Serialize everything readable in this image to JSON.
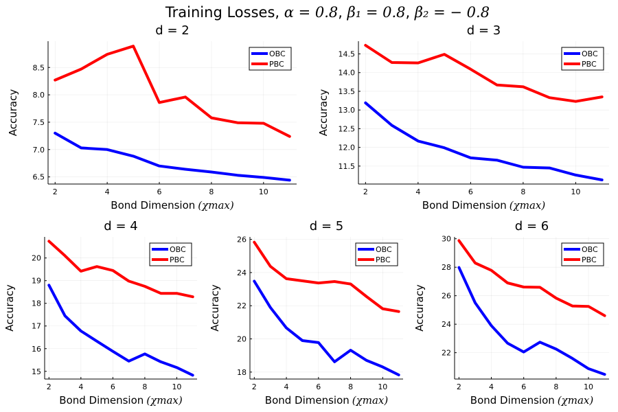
{
  "figure": {
    "title": {
      "prefix": "Training Losses, ",
      "alpha": "α = 0.8",
      "beta1": "β₁ = 0.8",
      "beta2": "β₂ = − 0.8",
      "sep": ", "
    }
  },
  "chart_data": [
    {
      "type": "line",
      "title": "d = 2",
      "xlabel": "Bond Dimension",
      "xlabel_math": "(χmax)",
      "ylabel": "Accuracy",
      "x": [
        2,
        3,
        4,
        5,
        6,
        7,
        8,
        9,
        10,
        11
      ],
      "xticks": [
        2,
        4,
        6,
        8,
        10
      ],
      "yticks": [
        6.5,
        7.0,
        7.5,
        8.0,
        8.5
      ],
      "ytick_labels": [
        "6.5",
        "7.0",
        "7.5",
        "8.0",
        "8.5"
      ],
      "xlim": [
        1.73,
        11.27
      ],
      "ylim": [
        6.37,
        8.98
      ],
      "grid": true,
      "legend": "top-right",
      "series": [
        {
          "name": "OBC",
          "color": "#0000ff",
          "values": [
            7.3,
            7.03,
            7.0,
            6.88,
            6.7,
            6.64,
            6.59,
            6.53,
            6.49,
            6.44
          ]
        },
        {
          "name": "PBC",
          "color": "#ff0000",
          "values": [
            8.27,
            8.47,
            8.74,
            8.89,
            7.86,
            7.96,
            7.58,
            7.49,
            7.48,
            7.24
          ]
        }
      ]
    },
    {
      "type": "line",
      "title": "d = 3",
      "xlabel": "Bond Dimension",
      "xlabel_math": "(χmax)",
      "ylabel": "Accuracy",
      "x": [
        2,
        3,
        4,
        5,
        6,
        7,
        8,
        9,
        10,
        11
      ],
      "xticks": [
        2,
        4,
        6,
        8,
        10
      ],
      "yticks": [
        11.5,
        12.0,
        12.5,
        13.0,
        13.5,
        14.0,
        14.5
      ],
      "ytick_labels": [
        "11.5",
        "12.0",
        "12.5",
        "13.0",
        "13.5",
        "14.0",
        "14.5"
      ],
      "xlim": [
        1.73,
        11.27
      ],
      "ylim": [
        11.02,
        14.84
      ],
      "grid": true,
      "legend": "top-right",
      "series": [
        {
          "name": "OBC",
          "color": "#0000ff",
          "values": [
            13.19,
            12.59,
            12.17,
            11.99,
            11.72,
            11.66,
            11.47,
            11.45,
            11.26,
            11.13
          ]
        },
        {
          "name": "PBC",
          "color": "#ff0000",
          "values": [
            14.73,
            14.27,
            14.26,
            14.49,
            14.09,
            13.67,
            13.62,
            13.33,
            13.23,
            13.35
          ]
        }
      ]
    },
    {
      "type": "line",
      "title": "d = 4",
      "xlabel": "Bond Dimension",
      "xlabel_math": "(χmax)",
      "ylabel": "Accuracy",
      "x": [
        2,
        3,
        4,
        5,
        6,
        7,
        8,
        9,
        10,
        11
      ],
      "xticks": [
        2,
        4,
        6,
        8,
        10
      ],
      "yticks": [
        15,
        16,
        17,
        18,
        19,
        20
      ],
      "ytick_labels": [
        "15",
        "16",
        "17",
        "18",
        "19",
        "20"
      ],
      "xlim": [
        1.73,
        11.27
      ],
      "ylim": [
        14.66,
        20.93
      ],
      "grid": true,
      "legend": "top-right",
      "series": [
        {
          "name": "OBC",
          "color": "#0000ff",
          "values": [
            18.8,
            17.45,
            16.78,
            16.33,
            15.88,
            15.45,
            15.77,
            15.42,
            15.17,
            14.83
          ]
        },
        {
          "name": "PBC",
          "color": "#ff0000",
          "values": [
            20.74,
            20.1,
            19.42,
            19.62,
            19.45,
            18.98,
            18.75,
            18.44,
            18.44,
            18.29
          ]
        }
      ]
    },
    {
      "type": "line",
      "title": "d = 5",
      "xlabel": "Bond Dimension",
      "xlabel_math": "(χmax)",
      "ylabel": "Accuracy",
      "x": [
        2,
        3,
        4,
        5,
        6,
        7,
        8,
        9,
        10,
        11
      ],
      "xticks": [
        2,
        4,
        6,
        8,
        10
      ],
      "yticks": [
        18,
        20,
        22,
        24,
        26
      ],
      "ytick_labels": [
        "18",
        "20",
        "22",
        "24",
        "26"
      ],
      "xlim": [
        1.73,
        11.27
      ],
      "ylim": [
        17.58,
        26.15
      ],
      "grid": true,
      "legend": "top-right",
      "series": [
        {
          "name": "OBC",
          "color": "#0000ff",
          "values": [
            23.48,
            21.9,
            20.66,
            19.9,
            19.78,
            18.62,
            19.32,
            18.7,
            18.31,
            17.83
          ]
        },
        {
          "name": "PBC",
          "color": "#ff0000",
          "values": [
            25.83,
            24.38,
            23.63,
            23.5,
            23.37,
            23.46,
            23.31,
            22.55,
            21.82,
            21.65
          ]
        }
      ]
    },
    {
      "type": "line",
      "title": "d = 6",
      "xlabel": "Bond Dimension",
      "xlabel_math": "(χmax)",
      "ylabel": "Accuracy",
      "x": [
        2,
        3,
        4,
        5,
        6,
        7,
        8,
        9,
        10,
        11
      ],
      "xticks": [
        2,
        4,
        6,
        8,
        10
      ],
      "yticks": [
        22,
        24,
        26,
        28,
        30
      ],
      "ytick_labels": [
        "22",
        "24",
        "26",
        "28",
        "30"
      ],
      "xlim": [
        1.73,
        11.27
      ],
      "ylim": [
        20.15,
        30.13
      ],
      "grid": true,
      "legend": "top-right",
      "series": [
        {
          "name": "OBC",
          "color": "#0000ff",
          "values": [
            27.98,
            25.5,
            23.9,
            22.67,
            22.05,
            22.74,
            22.25,
            21.6,
            20.88,
            20.48
          ]
        },
        {
          "name": "PBC",
          "color": "#ff0000",
          "values": [
            29.87,
            28.3,
            27.78,
            26.9,
            26.61,
            26.59,
            25.83,
            25.28,
            25.25,
            24.6
          ]
        }
      ]
    }
  ]
}
